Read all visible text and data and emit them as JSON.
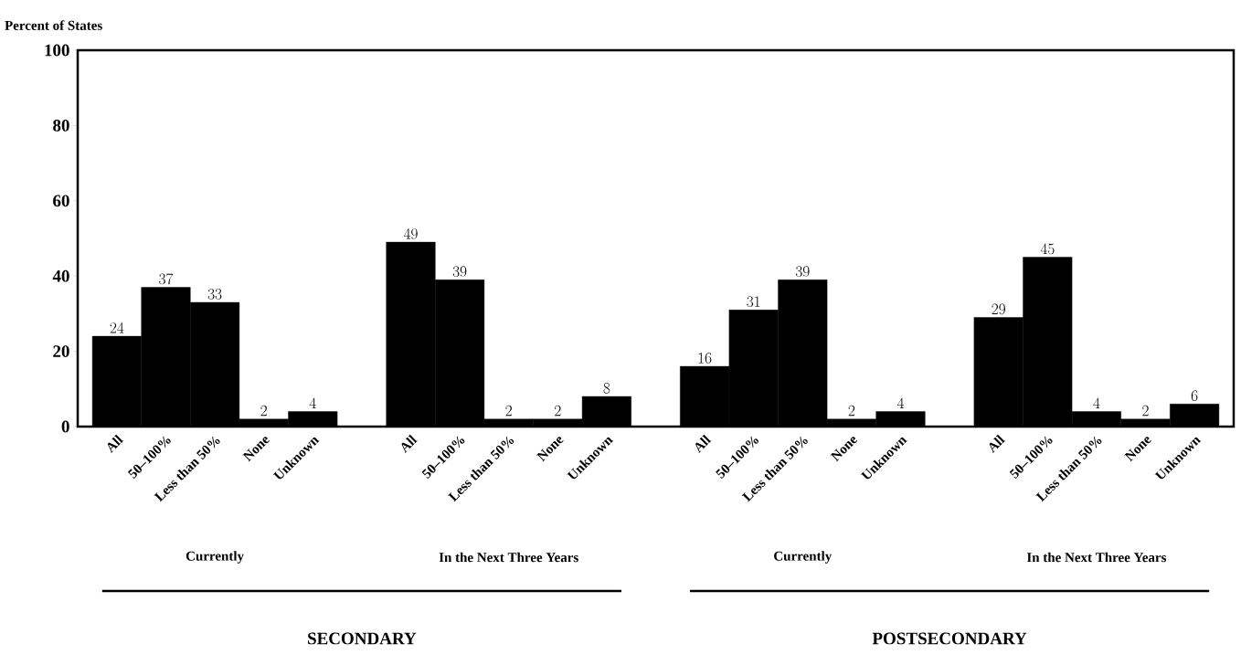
{
  "chart_data": {
    "type": "bar",
    "ylabel": "Percent of States",
    "categories": [
      "All",
      "50–100%",
      "Less than 50%",
      "None",
      "Unknown",
      null,
      "All",
      "50–100%",
      "Less than 50%",
      "None",
      "Unknown",
      null,
      "All",
      "50–100%",
      "Less than 50%",
      "None",
      "Unknown",
      null,
      "All",
      "50–100%",
      "Less than 50%",
      "None",
      "Unknown"
    ],
    "values": [
      24,
      37,
      33,
      2,
      4,
      null,
      49,
      39,
      2,
      2,
      8,
      null,
      16,
      31,
      39,
      2,
      4,
      null,
      29,
      45,
      4,
      2,
      6
    ],
    "color": "#000000",
    "data_labels": true,
    "ylim": [
      0,
      100
    ],
    "yticks": [
      0,
      20,
      40,
      60,
      80,
      100
    ],
    "annotations": [
      "Currently",
      "In the Next Three Years",
      "Currently",
      "In the Next Three Years",
      "SECONDARY",
      "POSTSECONDARY"
    ]
  }
}
